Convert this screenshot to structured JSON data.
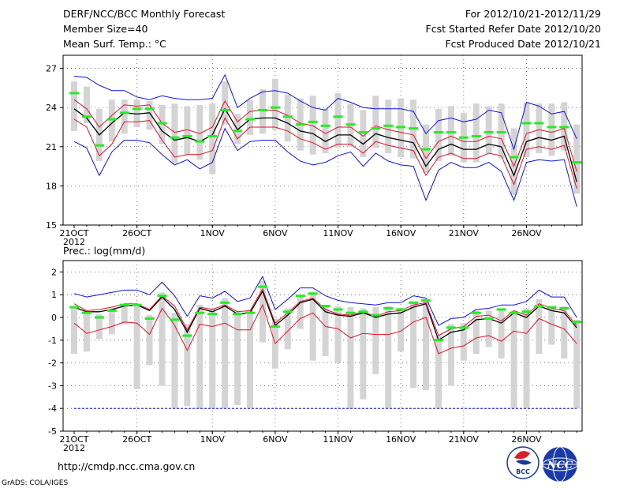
{
  "header": {
    "left": [
      "DERF/NCC/BCC Monthly Forecast",
      "Member Size=40",
      "Mean Surf. Temp.: °C"
    ],
    "right": [
      "For 2012/10/21-2012/11/29",
      "Fcst Started Refer Date 2012/10/20",
      "Fcst Produced Date 2012/10/21"
    ]
  },
  "footer": {
    "url": "http://cmdp.ncc.cma.gov.cn",
    "credit": "GrADS: COLA/IGES",
    "logo1": "BCC",
    "logo2": "NCC"
  },
  "colors": {
    "mean": "#000000",
    "spread": "#e0102a",
    "range": "#1010e0",
    "median": "#22ee22",
    "box": "#d4d4d4",
    "grid": "#555555"
  },
  "chart_data": [
    {
      "type": "line",
      "title": "Mean Surf. Temp.: °C",
      "x_ticks": [
        "21OCT",
        "26OCT",
        "1NOV",
        "6NOV",
        "11NOV",
        "16NOV",
        "21NOV",
        "26NOV"
      ],
      "x_tick_index": [
        0,
        5,
        11,
        16,
        21,
        26,
        31,
        36
      ],
      "year_label": "2012",
      "ylim": [
        15,
        28
      ],
      "y_ticks": [
        15,
        18,
        21,
        24,
        27
      ],
      "series": [
        {
          "name": "ensemble mean",
          "values": [
            23.9,
            23.2,
            21.9,
            22.8,
            23.6,
            23.5,
            23.6,
            22.2,
            21.5,
            21.7,
            21.4,
            21.9,
            23.9,
            22.3,
            23.1,
            23.2,
            23.2,
            22.8,
            22.2,
            22.0,
            21.4,
            21.9,
            21.9,
            21.2,
            22.0,
            21.7,
            21.5,
            21.3,
            19.5,
            20.8,
            21.2,
            20.8,
            20.8,
            21.2,
            21.0,
            18.8,
            21.4,
            21.7,
            21.5,
            21.8,
            18.3
          ]
        },
        {
          "name": "mean + std",
          "values": [
            24.6,
            23.9,
            22.5,
            23.4,
            24.2,
            24.1,
            24.2,
            22.8,
            22.1,
            22.3,
            22.0,
            22.5,
            24.5,
            22.9,
            23.7,
            23.8,
            23.8,
            23.4,
            22.8,
            22.6,
            22.0,
            22.5,
            22.5,
            21.8,
            22.6,
            22.3,
            22.1,
            21.9,
            20.1,
            21.4,
            21.8,
            21.4,
            21.4,
            21.8,
            21.6,
            19.5,
            22.0,
            22.3,
            22.1,
            22.4,
            19.1
          ]
        },
        {
          "name": "mean - std",
          "values": [
            23.1,
            22.5,
            20.3,
            21.2,
            22.9,
            22.9,
            23.0,
            21.5,
            20.2,
            20.4,
            20.4,
            20.7,
            23.2,
            21.6,
            22.5,
            22.5,
            22.5,
            22.2,
            21.6,
            21.3,
            20.8,
            21.2,
            21.2,
            20.5,
            21.4,
            21.1,
            20.9,
            20.7,
            18.8,
            20.2,
            20.5,
            20.1,
            20.1,
            20.5,
            20.3,
            18.1,
            20.8,
            21.0,
            20.8,
            21.1,
            17.8
          ]
        },
        {
          "name": "maximum",
          "values": [
            26.4,
            26.3,
            25.7,
            25.3,
            25.3,
            24.8,
            24.6,
            24.9,
            24.7,
            24.6,
            24.6,
            24.7,
            26.5,
            24.0,
            24.7,
            25.2,
            25.3,
            25.1,
            24.5,
            24.0,
            23.8,
            24.7,
            24.4,
            24.0,
            23.9,
            23.9,
            23.9,
            23.7,
            22.0,
            23.0,
            23.2,
            22.9,
            23.1,
            23.8,
            23.6,
            20.8,
            24.4,
            24.1,
            23.5,
            23.7,
            21.6
          ]
        },
        {
          "name": "minimum",
          "values": [
            21.4,
            20.9,
            18.8,
            20.6,
            21.5,
            21.5,
            21.3,
            20.4,
            19.6,
            20.0,
            19.3,
            19.8,
            22.4,
            20.7,
            21.4,
            21.5,
            21.5,
            20.6,
            19.9,
            19.6,
            19.8,
            20.3,
            20.6,
            19.5,
            20.5,
            19.9,
            19.6,
            19.5,
            16.9,
            19.2,
            19.8,
            19.4,
            19.4,
            19.8,
            19.1,
            16.9,
            19.8,
            20.0,
            19.9,
            20.0,
            16.4
          ]
        },
        {
          "name": "median",
          "values": [
            25.1,
            23.3,
            21.1,
            23.1,
            23.6,
            23.9,
            23.9,
            22.8,
            21.7,
            21.8,
            21.4,
            21.8,
            23.8,
            22.2,
            23.1,
            23.8,
            24.0,
            23.3,
            22.7,
            22.9,
            22.6,
            23.3,
            22.7,
            22.1,
            22.4,
            22.6,
            22.5,
            22.4,
            20.8,
            22.1,
            22.1,
            21.7,
            21.8,
            22.1,
            22.1,
            20.2,
            22.8,
            22.8,
            22.5,
            22.5,
            19.8
          ]
        }
      ],
      "box_top": [
        26.0,
        25.6,
        23.9,
        24.6,
        24.6,
        24.6,
        24.5,
        24.2,
        24.3,
        24.1,
        24.2,
        24.3,
        26.0,
        23.5,
        24.6,
        25.4,
        26.2,
        25.0,
        24.7,
        24.9,
        23.9,
        25.1,
        24.3,
        23.8,
        24.9,
        24.6,
        24.7,
        24.6,
        22.7,
        23.9,
        24.1,
        23.6,
        24.3,
        24.1,
        24.3,
        22.4,
        24.4,
        24.3,
        24.3,
        24.4,
        22.7
      ],
      "box_bottom": [
        22.2,
        22.8,
        19.9,
        21.4,
        22.0,
        22.5,
        22.3,
        21.2,
        19.7,
        20.4,
        20.0,
        18.9,
        22.7,
        21.2,
        21.9,
        22.0,
        22.3,
        21.4,
        20.7,
        20.4,
        20.5,
        20.9,
        21.0,
        20.2,
        20.9,
        20.5,
        20.2,
        20.1,
        19.0,
        19.9,
        20.3,
        19.8,
        19.8,
        20.5,
        20.1,
        17.3,
        20.2,
        20.5,
        20.3,
        20.7,
        17.4
      ]
    },
    {
      "type": "line",
      "title": "Prec.: log(mm/d)",
      "x_ticks": [
        "21OCT",
        "26OCT",
        "1NOV",
        "6NOV",
        "11NOV",
        "16NOV",
        "21NOV",
        "26NOV"
      ],
      "x_tick_index": [
        0,
        5,
        11,
        16,
        21,
        26,
        31,
        36
      ],
      "year_label": "2012",
      "ylim": [
        -5,
        2.5
      ],
      "y_ticks": [
        -5,
        -4,
        -3,
        -2,
        -1,
        0,
        1,
        2
      ],
      "series": [
        {
          "name": "ensemble mean",
          "values": [
            0.45,
            0.25,
            0.25,
            0.35,
            0.5,
            0.55,
            0.3,
            0.9,
            0.35,
            -0.65,
            0.4,
            0.25,
            0.5,
            0.15,
            0.2,
            1.15,
            -0.35,
            0.1,
            0.65,
            0.8,
            0.25,
            0.1,
            0.05,
            0.2,
            0.0,
            0.15,
            0.2,
            0.45,
            0.6,
            -1.0,
            -0.65,
            -0.55,
            -0.1,
            -0.05,
            -0.25,
            0.2,
            0.0,
            0.5,
            0.3,
            0.2,
            -0.45
          ]
        },
        {
          "name": "mean + std",
          "values": [
            0.6,
            0.3,
            0.35,
            0.45,
            0.6,
            0.6,
            0.35,
            0.95,
            0.5,
            -0.55,
            0.45,
            0.35,
            0.55,
            0.25,
            0.3,
            1.25,
            -0.25,
            0.2,
            0.7,
            0.85,
            0.35,
            0.15,
            0.1,
            0.25,
            0.05,
            0.25,
            0.3,
            0.55,
            0.65,
            -0.8,
            -0.5,
            -0.4,
            0.05,
            0.1,
            -0.15,
            0.3,
            0.1,
            0.6,
            0.4,
            0.3,
            -0.35
          ]
        },
        {
          "name": "mean - std",
          "values": [
            -0.25,
            -0.7,
            -0.55,
            -0.4,
            -0.2,
            -0.25,
            -0.75,
            0.4,
            -0.35,
            -1.45,
            -0.3,
            -0.4,
            -0.25,
            -0.55,
            -0.55,
            0.55,
            -1.15,
            -0.6,
            -0.05,
            0.2,
            -0.4,
            -0.5,
            -0.9,
            -0.7,
            -0.75,
            -0.75,
            -0.6,
            -0.2,
            0.0,
            -1.6,
            -1.35,
            -1.25,
            -0.9,
            -0.8,
            -1.05,
            -0.6,
            -0.7,
            -0.05,
            -0.3,
            -0.5,
            -1.15
          ]
        },
        {
          "name": "maximum",
          "values": [
            1.05,
            0.9,
            1.0,
            1.1,
            1.2,
            1.2,
            1.0,
            1.55,
            0.95,
            0.05,
            0.95,
            0.85,
            1.15,
            0.7,
            0.85,
            1.8,
            0.35,
            0.8,
            1.3,
            1.3,
            0.95,
            0.75,
            0.65,
            0.6,
            0.55,
            0.65,
            0.65,
            0.95,
            0.85,
            -0.35,
            -0.05,
            0.0,
            0.35,
            0.4,
            0.55,
            0.55,
            0.7,
            1.2,
            0.9,
            0.9,
            0.0
          ]
        },
        {
          "name": "minimum",
          "values": [
            -4.0,
            -4.0,
            -4.0,
            -4.0,
            -4.0,
            -4.0,
            -4.0,
            -4.0,
            -4.0,
            -4.0,
            -4.0,
            -4.0,
            -4.0,
            -4.0,
            -4.0,
            -4.0,
            -4.0,
            -4.0,
            -4.0,
            -4.0,
            -4.0,
            -4.0,
            -4.0,
            -4.0,
            -4.0,
            -4.0,
            -4.0,
            -4.0,
            -4.0,
            -4.0,
            -4.0,
            -4.0,
            -4.0,
            -4.0,
            -4.0,
            -4.0,
            -4.0,
            -4.0,
            -4.0,
            -4.0,
            -4.0
          ]
        },
        {
          "name": "median",
          "values": [
            0.45,
            0.2,
            0.0,
            0.3,
            0.55,
            0.55,
            -0.05,
            0.95,
            -0.1,
            -0.8,
            0.2,
            0.15,
            0.65,
            0.15,
            0.2,
            1.35,
            -0.4,
            0.25,
            0.95,
            1.05,
            0.5,
            0.35,
            0.2,
            0.25,
            0.1,
            0.4,
            0.35,
            0.65,
            0.75,
            -1.0,
            -0.45,
            -0.45,
            0.2,
            -0.05,
            0.35,
            0.2,
            0.25,
            0.5,
            0.45,
            0.4,
            -0.2
          ]
        }
      ],
      "box_top": [
        0.4,
        0.25,
        0.15,
        0.4,
        0.6,
        0.55,
        0.1,
        1.1,
        0.2,
        -0.3,
        0.55,
        0.4,
        0.85,
        0.3,
        0.3,
        1.6,
        -0.05,
        0.4,
        0.95,
        1.1,
        0.55,
        0.5,
        0.45,
        0.4,
        0.45,
        0.5,
        0.4,
        0.7,
        0.8,
        -0.8,
        -0.3,
        -0.25,
        0.3,
        0.3,
        0.35,
        0.3,
        0.4,
        0.8,
        0.5,
        0.5,
        -0.1
      ],
      "box_bottom": [
        -1.6,
        -1.5,
        -0.95,
        -0.75,
        -0.3,
        -3.15,
        -2.1,
        -3.0,
        -4.0,
        -3.9,
        -4.0,
        -4.0,
        -4.0,
        -3.85,
        -4.0,
        -1.1,
        -2.25,
        -1.4,
        -0.5,
        -1.9,
        -1.7,
        -2.0,
        -4.0,
        -3.6,
        -2.5,
        -4.0,
        -1.5,
        -3.1,
        -3.2,
        -4.0,
        -3.0,
        -1.9,
        -1.6,
        -1.3,
        -1.8,
        -4.0,
        -4.0,
        -1.6,
        -1.2,
        -1.8,
        -4.0
      ]
    }
  ]
}
